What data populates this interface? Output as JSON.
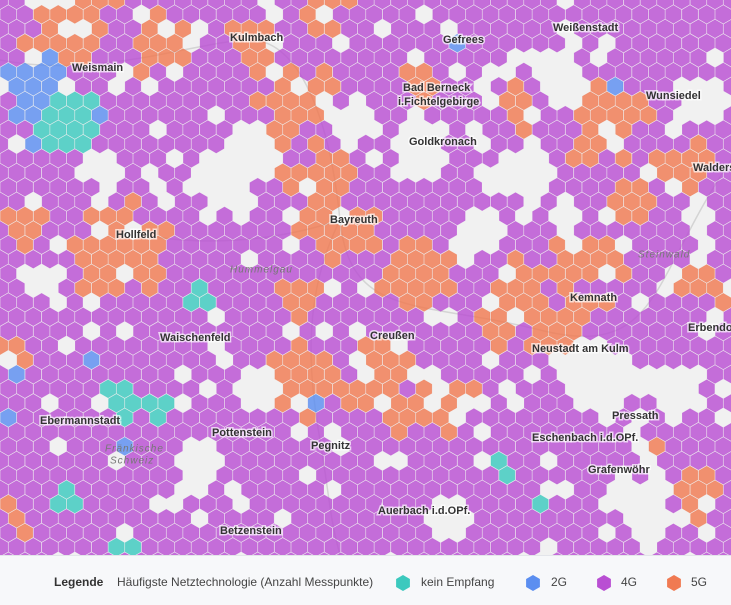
{
  "map": {
    "places": [
      "Kulmbach",
      "Weismain",
      "Gefrees",
      "Weißenstadt",
      "Bad Berneck",
      "i.Fichtelgebirge",
      "Wunsiedel",
      "Goldkronach",
      "Bayreuth",
      "Hollfeld",
      "Kemnath",
      "Waischenfeld",
      "Creußen",
      "Neustadt am Kulm",
      "Erbendo",
      "Walders",
      "Ebermannstadt",
      "Pottenstein",
      "Pegnitz",
      "Pressath",
      "Eschenbach i.d.OPf.",
      "Grafenwöhr",
      "Auerbach i.d.OPf.",
      "Betzenstein"
    ],
    "regions": [
      "Steinwald",
      "Hummelgau",
      "Fränkische",
      "Schweiz"
    ]
  },
  "legend": {
    "title": "Legende",
    "subtitle": "Häufigste Netztechnologie (Anzahl Messpunkte)",
    "items": [
      {
        "label": "kein Empfang",
        "color": "#3cc9be"
      },
      {
        "label": "2G",
        "color": "#5b8ef0"
      },
      {
        "label": "4G",
        "color": "#b94fd3"
      },
      {
        "label": "5G",
        "color": "#f07a52"
      }
    ]
  }
}
